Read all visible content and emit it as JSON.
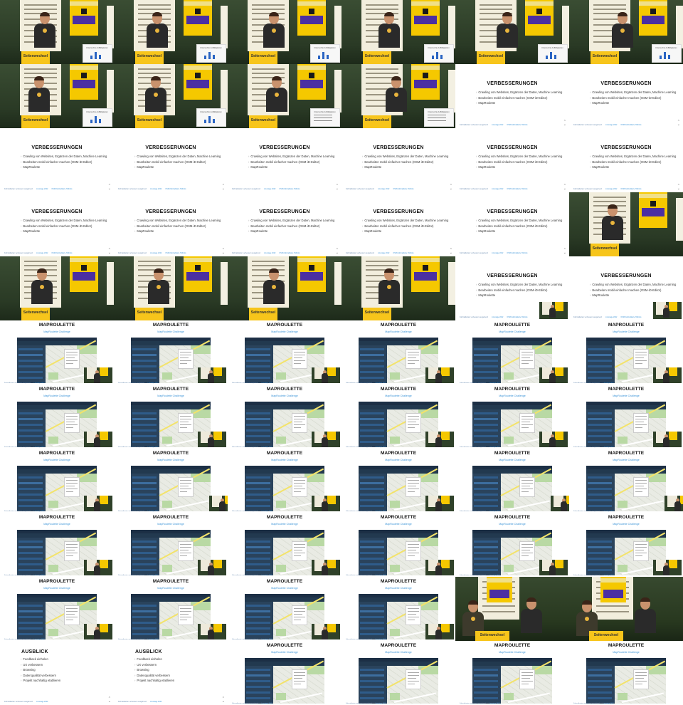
{
  "stage": {
    "podium_label": "Seitenwechsel",
    "poster_text": "LINUXTAGE",
    "sponsor_text": "RETCONOMY",
    "screen_title": "Untersuchte Auffälligkeiten"
  },
  "verbesserungen": {
    "title": "VERBESSERUNGEN",
    "items": [
      "Crawling von Websites, Ergänzen der Daten, Machine Learning",
      "Bearbeiten mobil einfacher machen (OSM-iD-Editor)",
      "MapRoulette"
    ]
  },
  "maproulette": {
    "title": "MAPROULETTE",
    "subtitle": "MapRoulette Challenge"
  },
  "ausblick": {
    "title": "AUSBLICK",
    "items": [
      "Feedback einholen",
      "UX verbessern",
      "Browsing",
      "Datenqualität verbessern",
      "Projekt nachhaltig etablieren"
    ]
  },
  "footer": {
    "left": "Fahrradkarten verbessern ausgehend",
    "mid": "Linuxtage 2022",
    "right": "OSM-Fahrradkarte Hotlinks"
  },
  "icons": {
    "nav": "chevron-up-down-icon"
  },
  "layout_sequence": [
    "stage",
    "stage",
    "stage",
    "stage",
    "stage",
    "stage",
    "stage",
    "stage",
    "stage",
    "stage",
    "verb",
    "verb",
    "verb",
    "verb",
    "verb",
    "verb",
    "verb",
    "verb",
    "verb",
    "verb",
    "verb",
    "verb",
    "verb",
    "stage",
    "stage",
    "stage",
    "stage",
    "stage",
    "verb-pip",
    "verb-pip",
    "mr",
    "mr",
    "mr",
    "mr",
    "mr",
    "mr",
    "mr",
    "mr",
    "mr",
    "mr",
    "mr",
    "mr",
    "mr",
    "mr",
    "mr",
    "mr",
    "mr",
    "mr",
    "mr",
    "mr",
    "mr",
    "mr",
    "mr",
    "mr",
    "mr",
    "mr",
    "mr",
    "mr",
    "stage-wide",
    "stage-wide",
    "ausblick",
    "ausblick",
    "mr",
    "mr",
    "mr",
    "mr"
  ]
}
